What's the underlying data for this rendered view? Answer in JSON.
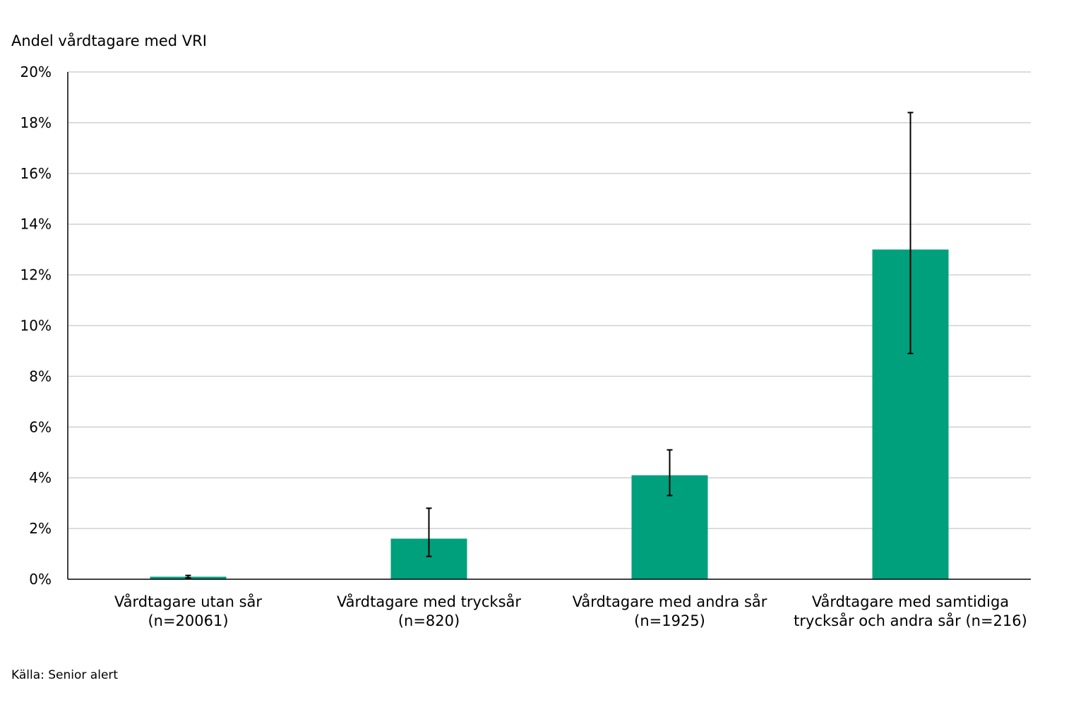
{
  "chart_data": {
    "type": "bar",
    "ylabel": "Andel vårdtagare med VRI",
    "ylim": [
      0,
      20
    ],
    "yticks": [
      0,
      2,
      4,
      6,
      8,
      10,
      12,
      14,
      16,
      18,
      20
    ],
    "ytick_format": "%",
    "grid": true,
    "categories": [
      [
        "Vårdtagare utan sår",
        "(n=20061)"
      ],
      [
        "Vårdtagare med trycksår",
        "(n=820)"
      ],
      [
        "Vårdtagare med andra sår",
        "(n=1925)"
      ],
      [
        "Vårdtagare med samtidiga",
        "trycksår och andra sår (n=216)"
      ]
    ],
    "values": [
      0.1,
      1.6,
      4.1,
      13.0
    ],
    "error_low": [
      0.05,
      0.9,
      3.3,
      8.9
    ],
    "error_high": [
      0.15,
      2.8,
      5.1,
      18.4
    ],
    "bar_color": "#00A07D"
  },
  "source": "Källa: Senior alert"
}
